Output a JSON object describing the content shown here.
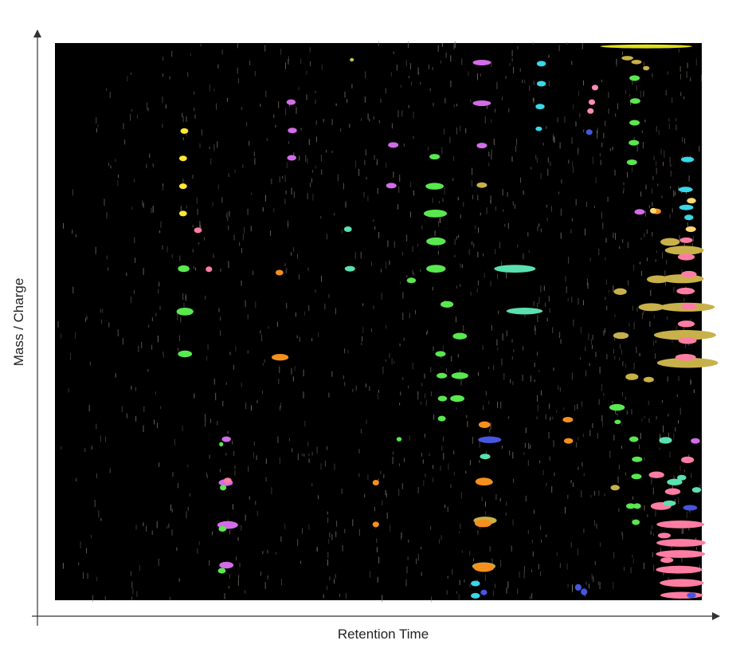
{
  "chart_data": {
    "type": "scatter",
    "xlabel": "Retention Time",
    "ylabel": "Mass / Charge",
    "xlim": [
      0,
      100
    ],
    "ylim": [
      0,
      100
    ],
    "tick_labels": false,
    "grid": false,
    "legend": "none",
    "colors": {
      "plot_background": "#000000",
      "page_background": "#ffffff",
      "axis": "#333333",
      "noise": "#8a7d74"
    },
    "series": [
      {
        "color": "#e0e01a",
        "points": [
          [
            91.4,
            99.4,
            14.2,
            0.7
          ]
        ]
      },
      {
        "color": "#ffe733",
        "points": [
          [
            20.0,
            84.2,
            1.2,
            1.0
          ],
          [
            19.8,
            79.3,
            1.2,
            1.0
          ],
          [
            19.8,
            74.3,
            1.2,
            1.0
          ],
          [
            19.8,
            69.4,
            1.2,
            1.0
          ]
        ]
      },
      {
        "color": "#c9c64a",
        "points": [
          [
            45.9,
            97.0,
            0.6,
            0.6
          ]
        ]
      },
      {
        "color": "#d36ce8",
        "points": [
          [
            66.0,
            96.5,
            2.8,
            1.0
          ],
          [
            66.0,
            89.2,
            2.8,
            1.0
          ],
          [
            66.0,
            81.6,
            1.6,
            1.0
          ],
          [
            36.5,
            89.4,
            1.4,
            1.0
          ],
          [
            36.7,
            84.3,
            1.4,
            1.0
          ],
          [
            36.6,
            79.4,
            1.4,
            1.0
          ],
          [
            52.3,
            81.7,
            1.6,
            1.0
          ],
          [
            52.0,
            74.4,
            1.6,
            1.0
          ],
          [
            90.4,
            69.7,
            1.6,
            1.0
          ],
          [
            26.5,
            28.9,
            1.4,
            1.0
          ],
          [
            26.4,
            21.1,
            2.2,
            1.2
          ],
          [
            26.7,
            13.5,
            3.2,
            1.4
          ],
          [
            26.5,
            6.3,
            2.2,
            1.2
          ],
          [
            99.0,
            28.6,
            1.4,
            1.0
          ]
        ]
      },
      {
        "color": "#3ad6ea",
        "points": [
          [
            75.2,
            96.3,
            1.4,
            1.0
          ],
          [
            75.2,
            92.7,
            1.4,
            1.0
          ],
          [
            75.0,
            88.6,
            1.4,
            1.0
          ],
          [
            74.8,
            84.6,
            1.0,
            0.8
          ],
          [
            65.0,
            3.0,
            1.4,
            1.0
          ],
          [
            65.0,
            0.8,
            1.4,
            1.0
          ],
          [
            97.8,
            79.1,
            2.0,
            1.0
          ],
          [
            97.5,
            73.7,
            2.2,
            1.0
          ],
          [
            97.6,
            70.5,
            2.2,
            1.0
          ],
          [
            98.0,
            68.7,
            1.4,
            1.0
          ]
        ]
      },
      {
        "color": "#ff8ab8",
        "points": [
          [
            83.5,
            92.0,
            1.0,
            1.0
          ],
          [
            83.0,
            89.4,
            1.0,
            1.0
          ],
          [
            82.8,
            87.8,
            1.0,
            1.0
          ]
        ]
      },
      {
        "color": "#59e84f",
        "points": [
          [
            89.6,
            93.7,
            1.6,
            1.0
          ],
          [
            89.7,
            89.6,
            1.6,
            1.0
          ],
          [
            89.6,
            85.7,
            1.6,
            1.0
          ],
          [
            89.5,
            82.1,
            1.6,
            1.0
          ],
          [
            89.2,
            78.6,
            1.6,
            1.0
          ],
          [
            58.7,
            79.6,
            1.6,
            1.0
          ],
          [
            58.7,
            74.3,
            2.8,
            1.2
          ],
          [
            58.8,
            69.4,
            3.6,
            1.4
          ],
          [
            58.9,
            64.4,
            3.0,
            1.4
          ],
          [
            58.9,
            59.5,
            3.0,
            1.4
          ],
          [
            19.9,
            59.5,
            1.8,
            1.2
          ],
          [
            20.1,
            51.8,
            2.6,
            1.4
          ],
          [
            20.1,
            44.2,
            2.2,
            1.2
          ],
          [
            55.1,
            57.4,
            1.4,
            1.0
          ],
          [
            60.6,
            53.1,
            2.0,
            1.2
          ],
          [
            62.6,
            47.4,
            2.2,
            1.2
          ],
          [
            59.6,
            44.2,
            1.6,
            1.0
          ],
          [
            62.6,
            40.3,
            2.6,
            1.2
          ],
          [
            59.8,
            40.3,
            1.6,
            1.0
          ],
          [
            59.9,
            36.2,
            1.4,
            1.0
          ],
          [
            62.2,
            36.2,
            2.2,
            1.2
          ],
          [
            59.8,
            32.6,
            1.2,
            1.0
          ],
          [
            53.2,
            28.9,
            0.8,
            0.8
          ],
          [
            25.7,
            28.0,
            0.6,
            0.8
          ],
          [
            26.0,
            20.2,
            1.0,
            1.0
          ],
          [
            25.9,
            12.8,
            1.2,
            1.0
          ],
          [
            25.8,
            5.3,
            1.2,
            1.0
          ],
          [
            86.9,
            34.6,
            2.4,
            1.2
          ],
          [
            89.5,
            28.9,
            1.4,
            1.0
          ],
          [
            90.0,
            25.3,
            1.6,
            1.0
          ],
          [
            89.9,
            22.2,
            1.6,
            1.0
          ],
          [
            89.0,
            16.9,
            1.4,
            1.0
          ],
          [
            90.0,
            16.9,
            1.2,
            1.0
          ],
          [
            89.8,
            14.0,
            1.2,
            1.0
          ],
          [
            87.0,
            32.0,
            1.0,
            0.8
          ]
        ]
      },
      {
        "color": "#c8b14a",
        "points": [
          [
            88.5,
            97.3,
            1.8,
            0.8
          ],
          [
            89.9,
            96.6,
            1.6,
            0.8
          ],
          [
            91.4,
            95.5,
            1.0,
            0.8
          ],
          [
            66.0,
            74.5,
            1.6,
            1.0
          ],
          [
            97.3,
            62.8,
            6.0,
            1.6
          ],
          [
            97.0,
            57.7,
            6.6,
            1.6
          ],
          [
            97.7,
            52.6,
            8.6,
            1.6
          ],
          [
            97.4,
            47.6,
            9.6,
            1.8
          ],
          [
            97.8,
            42.6,
            9.4,
            1.8
          ],
          [
            95.1,
            64.3,
            3.0,
            1.4
          ],
          [
            92.2,
            52.6,
            4.0,
            1.4
          ],
          [
            93.2,
            57.6,
            3.4,
            1.4
          ],
          [
            89.2,
            40.1,
            2.0,
            1.2
          ],
          [
            91.8,
            39.6,
            1.6,
            1.0
          ],
          [
            87.4,
            55.4,
            2.0,
            1.2
          ],
          [
            87.5,
            47.5,
            2.4,
            1.2
          ],
          [
            66.5,
            14.3,
            3.6,
            1.4
          ],
          [
            66.3,
            6.1,
            3.6,
            1.4
          ],
          [
            66.4,
            21.2,
            2.6,
            1.2
          ],
          [
            86.6,
            20.2,
            1.4,
            1.0
          ]
        ]
      },
      {
        "color": "#ff7da3",
        "points": [
          [
            97.6,
            64.6,
            2.0,
            1.0
          ],
          [
            97.6,
            61.6,
            2.6,
            1.2
          ],
          [
            98.0,
            58.5,
            2.4,
            1.2
          ],
          [
            97.5,
            55.5,
            2.8,
            1.2
          ],
          [
            98.0,
            52.7,
            2.4,
            1.2
          ],
          [
            97.6,
            49.6,
            2.6,
            1.2
          ],
          [
            97.8,
            46.6,
            2.8,
            1.2
          ],
          [
            97.5,
            43.6,
            3.2,
            1.2
          ],
          [
            96.7,
            13.6,
            7.4,
            1.4
          ],
          [
            96.8,
            10.3,
            7.6,
            1.4
          ],
          [
            96.7,
            8.3,
            7.6,
            1.4
          ],
          [
            96.5,
            5.5,
            7.2,
            1.4
          ],
          [
            96.9,
            3.1,
            6.8,
            1.4
          ],
          [
            96.9,
            0.9,
            6.6,
            1.2
          ],
          [
            93.7,
            16.9,
            3.2,
            1.4
          ],
          [
            95.5,
            19.5,
            2.4,
            1.2
          ],
          [
            97.8,
            25.2,
            2.0,
            1.2
          ],
          [
            94.2,
            11.6,
            2.0,
            1.0
          ],
          [
            94.6,
            7.2,
            2.0,
            1.0
          ],
          [
            23.8,
            59.4,
            1.0,
            1.0
          ],
          [
            22.1,
            66.4,
            1.2,
            1.0
          ],
          [
            26.7,
            21.5,
            1.2,
            1.0
          ],
          [
            93.0,
            22.5,
            2.4,
            1.2
          ]
        ]
      },
      {
        "color": "#f58f1d",
        "points": [
          [
            34.7,
            58.8,
            1.2,
            1.0
          ],
          [
            34.8,
            43.6,
            2.6,
            1.2
          ],
          [
            66.4,
            31.5,
            1.8,
            1.2
          ],
          [
            66.3,
            21.3,
            2.6,
            1.4
          ],
          [
            66.2,
            13.8,
            2.6,
            1.4
          ],
          [
            66.3,
            5.9,
            3.2,
            1.6
          ],
          [
            79.3,
            32.4,
            1.6,
            1.0
          ],
          [
            79.4,
            28.6,
            1.4,
            1.0
          ],
          [
            49.6,
            21.1,
            1.0,
            1.0
          ],
          [
            49.6,
            13.6,
            1.0,
            1.0
          ],
          [
            93.0,
            69.8,
            1.4,
            1.0
          ]
        ]
      },
      {
        "color": "#5be0b0",
        "points": [
          [
            45.6,
            59.5,
            1.6,
            1.0
          ],
          [
            45.3,
            66.6,
            1.2,
            1.0
          ],
          [
            71.1,
            59.5,
            6.4,
            1.4
          ],
          [
            72.6,
            51.9,
            5.6,
            1.2
          ],
          [
            66.5,
            25.8,
            1.6,
            1.0
          ],
          [
            94.4,
            28.7,
            2.0,
            1.2
          ],
          [
            95.8,
            21.2,
            2.4,
            1.2
          ],
          [
            95.0,
            17.4,
            2.0,
            1.0
          ],
          [
            96.9,
            22.0,
            1.4,
            1.0
          ],
          [
            99.2,
            19.8,
            1.4,
            1.0
          ]
        ]
      },
      {
        "color": "#4756e0",
        "points": [
          [
            67.2,
            28.8,
            3.6,
            1.2
          ],
          [
            82.6,
            84.0,
            1.0,
            1.0
          ],
          [
            80.9,
            2.3,
            1.0,
            1.2
          ],
          [
            81.8,
            1.5,
            1.0,
            1.2
          ],
          [
            98.2,
            16.6,
            2.2,
            1.0
          ],
          [
            98.4,
            0.9,
            1.4,
            1.0
          ],
          [
            66.3,
            1.4,
            1.0,
            1.0
          ]
        ]
      },
      {
        "color": "#ffd970",
        "points": [
          [
            92.5,
            69.9,
            1.0,
            1.0
          ],
          [
            98.4,
            71.7,
            1.4,
            1.0
          ],
          [
            98.3,
            66.6,
            1.6,
            1.0
          ]
        ]
      }
    ]
  }
}
